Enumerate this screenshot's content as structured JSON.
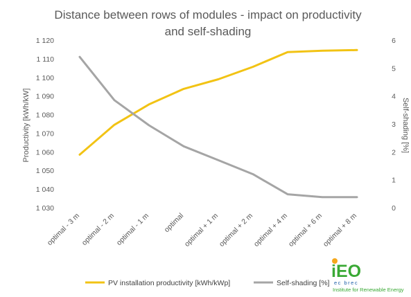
{
  "chart_data": {
    "type": "line",
    "title_line1": "Distance between rows of modules - impact on productivity",
    "title_line2": "and self-shading",
    "categories": [
      "optimal - 3 m",
      "optimal - 2 m",
      "optimal - 1 m",
      "optimal",
      "optimal + 1 m",
      "optimal + 2 m",
      "optimal + 4 m",
      "optimal + 6 m",
      "optimal + 8 m"
    ],
    "ylabel_left": "Productivity [kWh/kW]",
    "ylabel_right": "Self-shading [%]",
    "y_left_ticks": [
      "1 030",
      "1 040",
      "1 050",
      "1 060",
      "1 070",
      "1 080",
      "1 090",
      "1 100",
      "1 110",
      "1 120"
    ],
    "y_right_ticks": [
      "0",
      "1",
      "2",
      "3",
      "4",
      "5",
      "6"
    ],
    "ylim_left": [
      1030,
      1120
    ],
    "ylim_right": [
      0,
      6
    ],
    "series": [
      {
        "name": "PV installation productivity [kWh/kWp]",
        "axis": "left",
        "color": "#F2C314",
        "values": [
          1058.5,
          1074.5,
          1085.5,
          1093.8,
          1099,
          1105.7,
          1113.6,
          1114.3,
          1114.7
        ]
      },
      {
        "name": "Self-shading [%]",
        "axis": "right",
        "color": "#A5A5A5",
        "values": [
          5.4,
          3.85,
          2.95,
          2.2,
          1.7,
          1.2,
          0.48,
          0.38,
          0.38
        ]
      }
    ],
    "grid": false,
    "legend_position": "bottom"
  },
  "logo": {
    "letters": "iEO",
    "sub": "ec brec",
    "caption": "Institute for Renewable Energy",
    "color_main": "#3aa935",
    "color_accent": "#f5a81c",
    "color_blue": "#1f5fa8"
  }
}
